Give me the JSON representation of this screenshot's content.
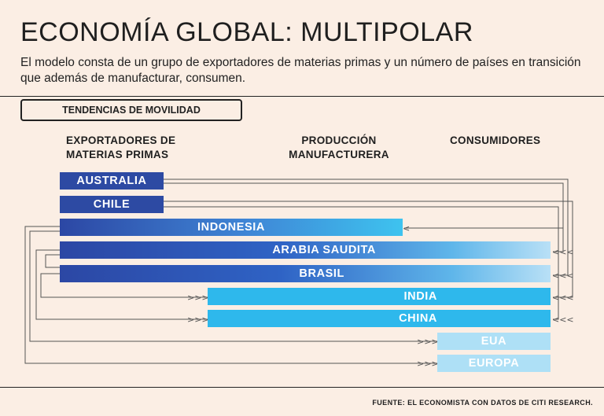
{
  "header": {
    "title": "ECONOMÍA GLOBAL: MULTIPOLAR",
    "subtitle": "El modelo consta de un grupo de exportadores de materias primas y un número de países en transición que además de manufacturar, consumen."
  },
  "diagram": {
    "section_label": "TENDENCIAS DE MOVILIDAD",
    "columns": {
      "exporters": "EXPORTADORES DE MATERIAS PRIMAS",
      "production": "PRODUCCIÓN MANUFACTURERA",
      "consumers": "CONSUMIDORES"
    },
    "countries": {
      "australia": "AUSTRALIA",
      "chile": "CHILE",
      "indonesia": "INDONESIA",
      "arabia_saudita": "ARABIA SAUDITA",
      "brasil": "BRASIL",
      "india": "INDIA",
      "china": "CHINA",
      "eua": "EUA",
      "europa": "EUROPA"
    },
    "colors": {
      "dark_blue": "#2d4aa3",
      "cyan": "#2eb8ec",
      "pale_blue": "#aee0f6",
      "line": "#555555"
    }
  },
  "footer": {
    "source": "FUENTE: EL ECONOMISTA CON DATOS DE CITI RESEARCH."
  }
}
